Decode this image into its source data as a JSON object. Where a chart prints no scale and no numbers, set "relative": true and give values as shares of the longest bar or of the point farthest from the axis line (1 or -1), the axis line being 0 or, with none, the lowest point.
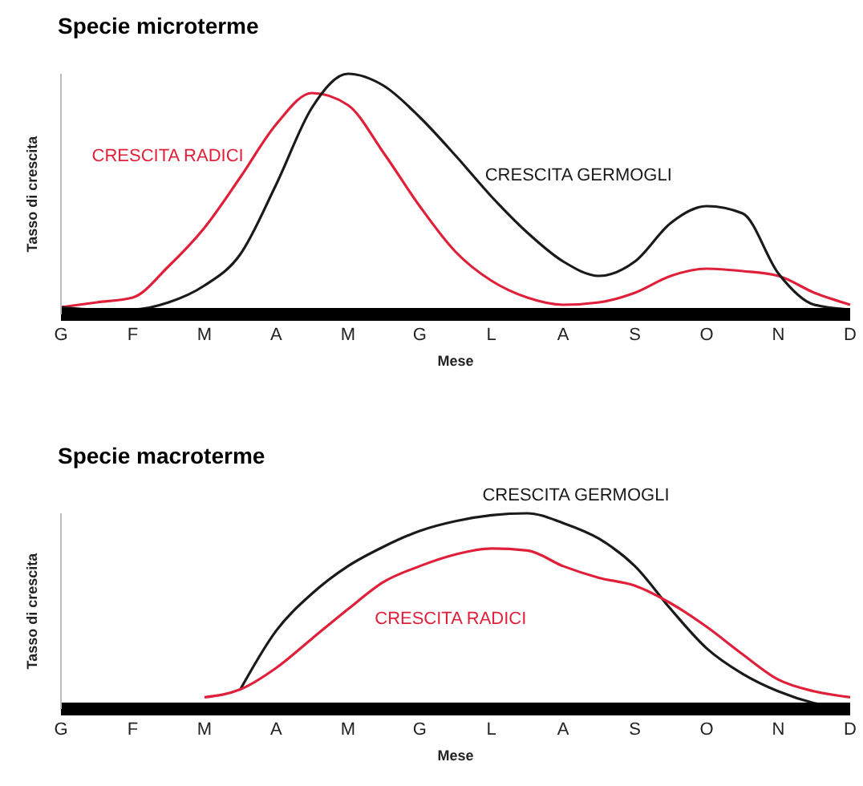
{
  "chart_data": [
    {
      "type": "line",
      "title": "Specie microterme",
      "xlabel": "Mese",
      "ylabel": "Tasso di crescita",
      "relative": true,
      "marker": "none",
      "categories": [
        "G",
        null,
        "F",
        null,
        "M",
        null,
        "A",
        null,
        "M",
        null,
        "G",
        null,
        "L",
        null,
        "A",
        null,
        "S",
        null,
        "O",
        null,
        "N",
        null,
        "D"
      ],
      "series": [
        {
          "name": "CRESCITA RADICI",
          "color": "#e0203a",
          "values": [
            0.03,
            0.05,
            0.07,
            0.2,
            0.36,
            0.57,
            0.79,
            0.92,
            0.87,
            0.67,
            0.45,
            0.26,
            0.14,
            0.07,
            0.04,
            0.05,
            0.09,
            0.16,
            0.19,
            0.18,
            0.16,
            0.09,
            0.04
          ]
        },
        {
          "name": "CRESCITA GERMOGLI",
          "color": "#1a1a1a",
          "values": [
            0.03,
            0.02,
            0.02,
            0.05,
            0.12,
            0.25,
            0.54,
            0.86,
            1,
            0.95,
            0.82,
            0.66,
            0.49,
            0.34,
            0.22,
            0.16,
            0.22,
            0.38,
            0.45,
            0.42,
            0.17,
            0.04,
            0.02
          ]
        }
      ]
    },
    {
      "type": "line",
      "title": "Specie macroterme",
      "xlabel": "Mese",
      "ylabel": "Tasso di crescita",
      "relative": true,
      "marker": "none",
      "categories": [
        "G",
        null,
        "F",
        null,
        "M",
        null,
        "A",
        null,
        "M",
        null,
        "G",
        null,
        "L",
        null,
        "A",
        null,
        "S",
        null,
        "O",
        null,
        "N",
        null,
        "D"
      ],
      "series": [
        {
          "name": "CRESCITA GERMOGLI",
          "color": "#1a1a1a",
          "values": [
            null,
            null,
            null,
            null,
            null,
            0.1,
            0.4,
            0.59,
            0.73,
            0.83,
            0.91,
            0.96,
            0.99,
            1,
            0.95,
            0.87,
            0.73,
            0.51,
            0.31,
            0.18,
            0.09,
            0.03,
            0
          ]
        },
        {
          "name": "CRESCITA RADICI",
          "color": "#e0203a",
          "values": [
            null,
            null,
            null,
            null,
            0.06,
            0.1,
            0.21,
            0.36,
            0.51,
            0.65,
            0.73,
            0.79,
            0.82,
            0.81,
            0.73,
            0.67,
            0.63,
            0.54,
            0.42,
            0.28,
            0.15,
            0.09,
            0.06
          ]
        }
      ]
    }
  ]
}
